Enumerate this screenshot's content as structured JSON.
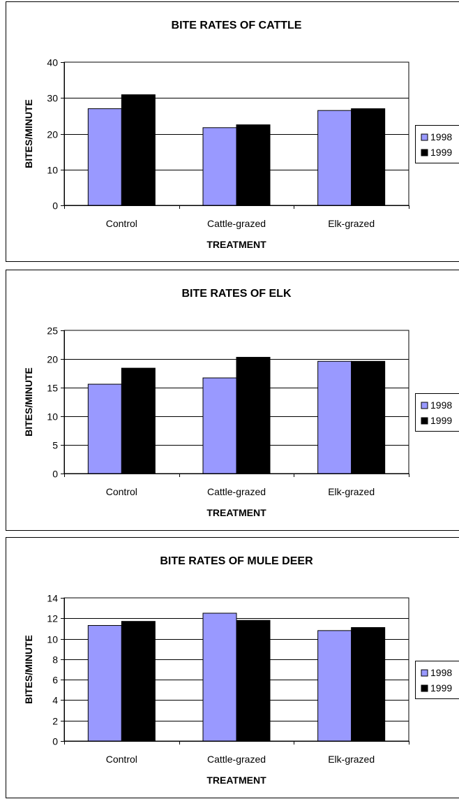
{
  "chart_data": [
    {
      "type": "bar",
      "title": "BITE RATES OF CATTLE",
      "xlabel": "TREATMENT",
      "ylabel": "BITES/MINUTE",
      "categories": [
        "Control",
        "Cattle-grazed",
        "Elk-grazed"
      ],
      "series": [
        {
          "name": "1998",
          "values": [
            27,
            21.7,
            26.5
          ]
        },
        {
          "name": "1999",
          "values": [
            30.9,
            22.5,
            27
          ]
        }
      ],
      "ylim": [
        0,
        40
      ],
      "yticks": [
        "0",
        "10",
        "20",
        "30",
        "40"
      ],
      "grid": true,
      "legend": "right"
    },
    {
      "type": "bar",
      "title": "BITE RATES OF ELK",
      "xlabel": "TREATMENT",
      "ylabel": "BITES/MINUTE",
      "categories": [
        "Control",
        "Cattle-grazed",
        "Elk-grazed"
      ],
      "series": [
        {
          "name": "1998",
          "values": [
            15.6,
            16.7,
            19.6
          ]
        },
        {
          "name": "1999",
          "values": [
            18.4,
            20.3,
            19.6
          ]
        }
      ],
      "ylim": [
        0,
        25
      ],
      "yticks": [
        "0",
        "5",
        "10",
        "15",
        "20",
        "25"
      ],
      "grid": true,
      "legend": "right"
    },
    {
      "type": "bar",
      "title": "BITE RATES OF MULE DEER",
      "xlabel": "TREATMENT",
      "ylabel": "BITES/MINUTE",
      "categories": [
        "Control",
        "Cattle-grazed",
        "Elk-grazed"
      ],
      "series": [
        {
          "name": "1998",
          "values": [
            11.3,
            12.5,
            10.8
          ]
        },
        {
          "name": "1999",
          "values": [
            11.7,
            11.8,
            11.1
          ]
        }
      ],
      "ylim": [
        0,
        14
      ],
      "yticks": [
        "0",
        "2",
        "4",
        "6",
        "8",
        "10",
        "12",
        "14"
      ],
      "grid": true,
      "legend": "right"
    }
  ],
  "colors": {
    "series_1998": "#9999ff",
    "series_1999": "#000000",
    "axis": "#000000",
    "gridline": "#000000"
  }
}
